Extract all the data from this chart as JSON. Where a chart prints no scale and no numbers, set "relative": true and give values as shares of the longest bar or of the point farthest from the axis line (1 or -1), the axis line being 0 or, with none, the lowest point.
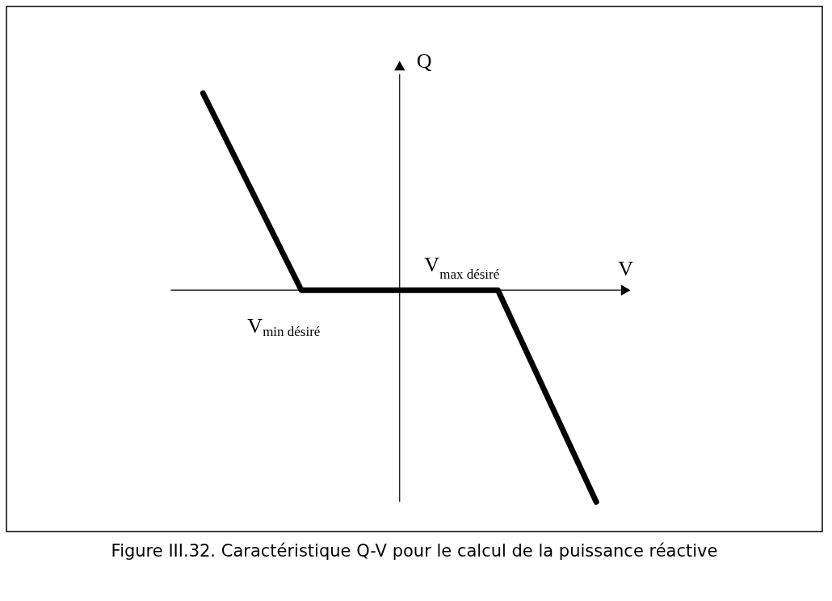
{
  "chart_data": {
    "type": "line",
    "relative": true,
    "title": "Figure III.32. Caractéristique Q-V pour le calcul de la puissance réactive",
    "xlabel": "V",
    "ylabel": "Q",
    "categories": [
      null,
      null,
      null,
      null,
      null
    ],
    "series": [
      {
        "color": "#000000",
        "values": [
          0.93,
          0,
          0,
          0,
          -1
        ]
      }
    ],
    "annotations": [
      "V$_{min désiré}$",
      "V$_{max désiré}$"
    ],
    "line_style": "solid"
  }
}
